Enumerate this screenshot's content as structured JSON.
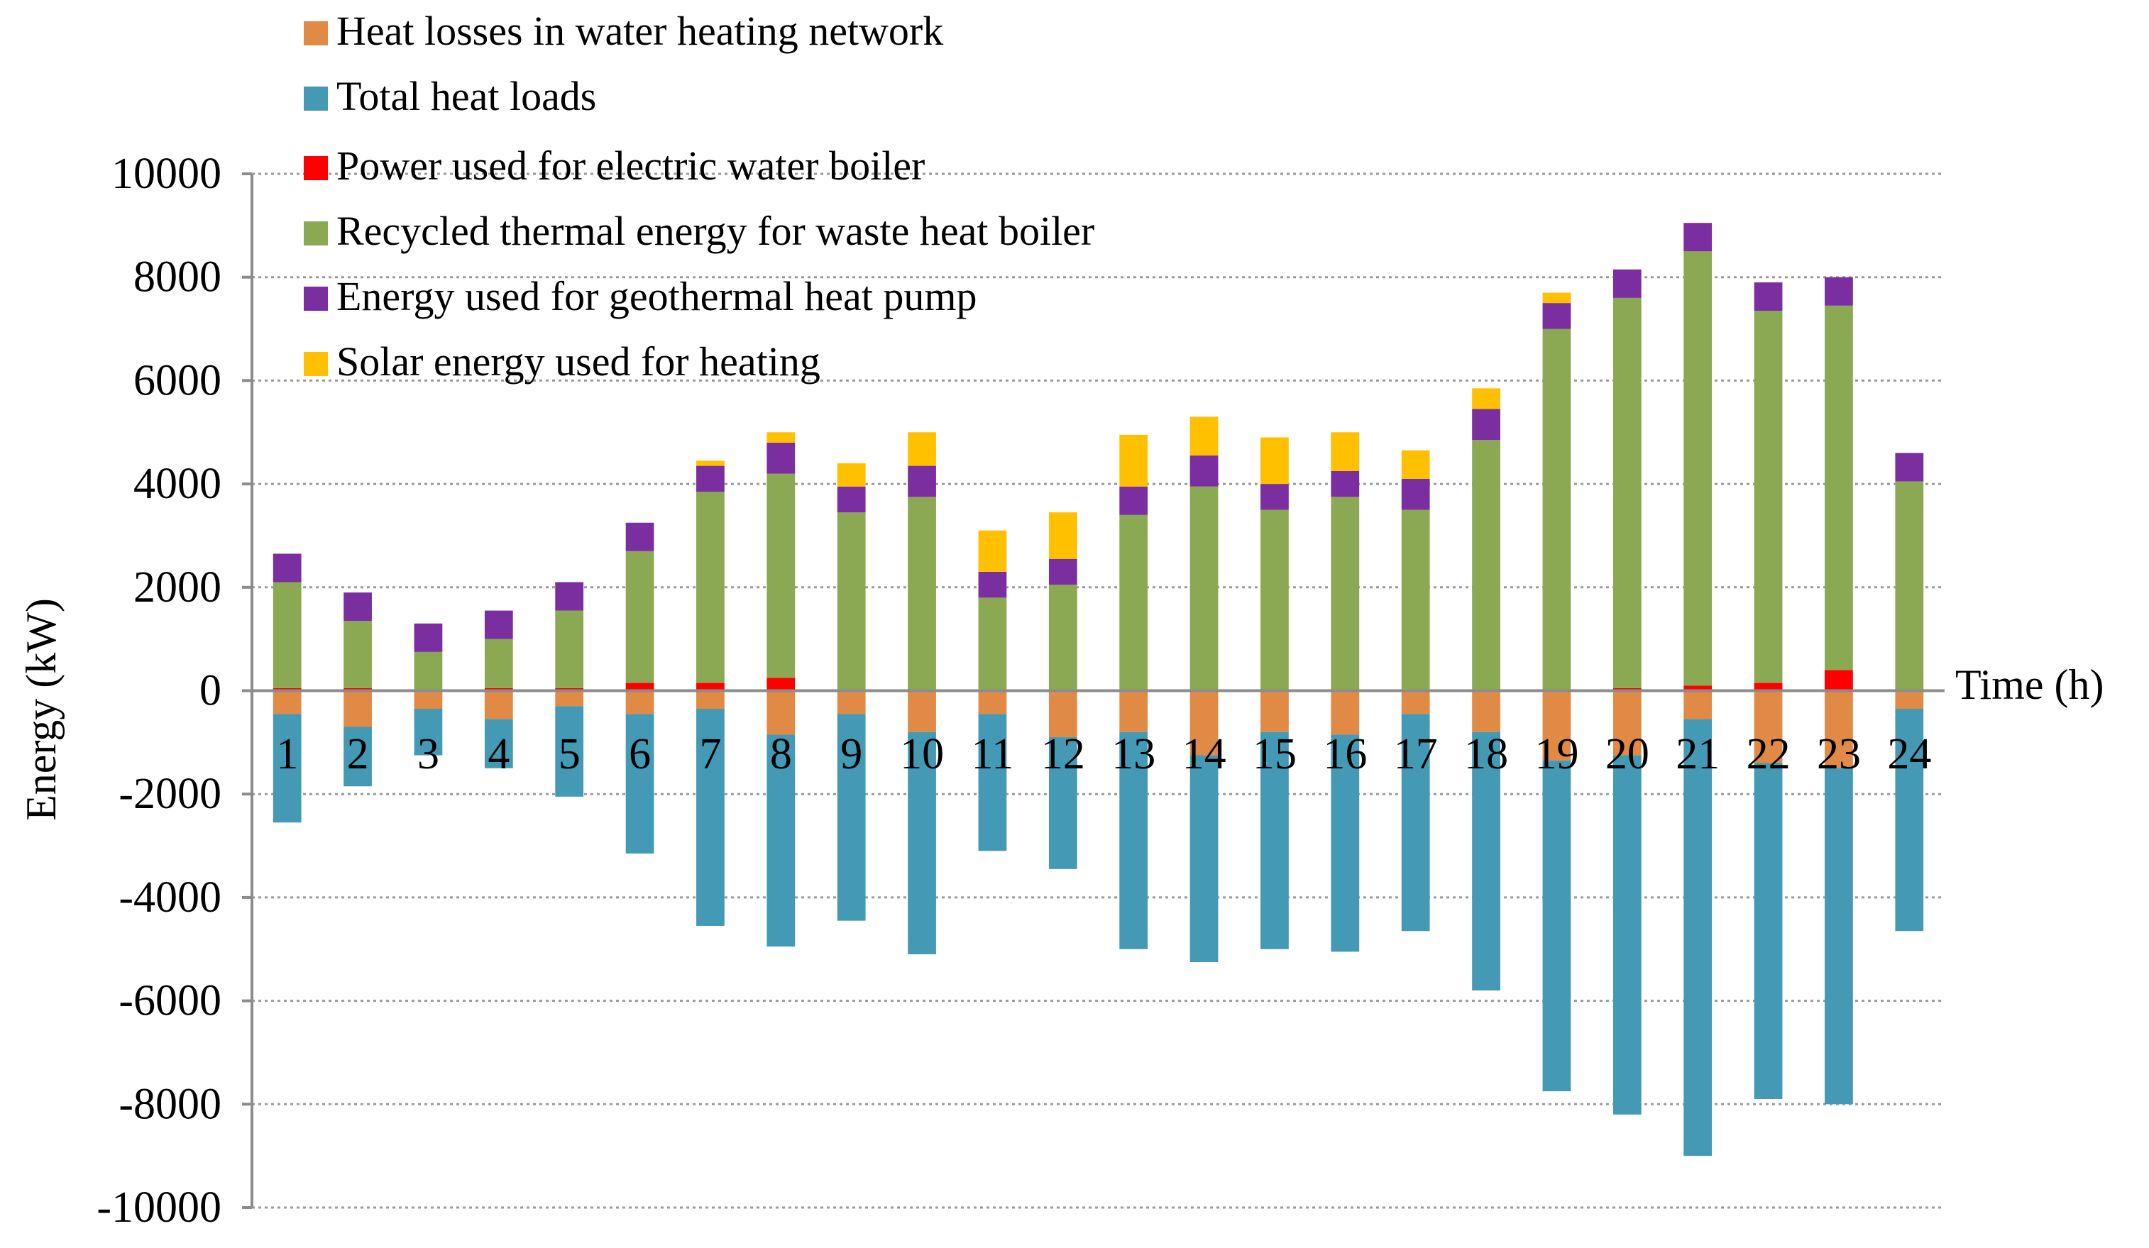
{
  "chart_data": {
    "type": "bar",
    "stacked": true,
    "title": "",
    "xlabel": "Time (h)",
    "ylabel": "Energy (kW)",
    "ylim": [
      -10000,
      10000
    ],
    "yticks": [
      10000,
      8000,
      6000,
      4000,
      2000,
      0,
      -2000,
      -4000,
      -6000,
      -8000,
      -10000
    ],
    "ytick_labels": [
      "10000",
      "8000",
      "6000",
      "4000",
      "2000",
      "0",
      "-2000",
      "-4000",
      "-6000",
      "-8000",
      "-10000"
    ],
    "grid": true,
    "legend_position": "top-left",
    "categories": [
      "1",
      "2",
      "3",
      "4",
      "5",
      "6",
      "7",
      "8",
      "9",
      "10",
      "11",
      "12",
      "13",
      "14",
      "15",
      "16",
      "17",
      "18",
      "19",
      "20",
      "21",
      "22",
      "23",
      "24"
    ],
    "series": [
      {
        "name": "Heat losses in water heating network",
        "color": "#E08A45",
        "side": "negative",
        "values": [
          -450,
          -700,
          -350,
          -550,
          -300,
          -450,
          -350,
          -850,
          -450,
          -800,
          -450,
          -900,
          -800,
          -1250,
          -800,
          -850,
          -450,
          -800,
          -1350,
          -1250,
          -550,
          -1400,
          -1500,
          -350
        ]
      },
      {
        "name": "Total heat loads",
        "color": "#4499B5",
        "side": "negative",
        "values": [
          -2100,
          -1150,
          -900,
          -950,
          -1750,
          -2700,
          -4200,
          -4100,
          -4000,
          -4300,
          -2650,
          -2550,
          -4200,
          -4000,
          -4200,
          -4200,
          -4200,
          -5000,
          -6400,
          -6950,
          -8450,
          -6500,
          -6500,
          -4300
        ]
      },
      {
        "name": "Power used for electric water boiler",
        "color": "#FF0000",
        "side": "positive",
        "values": [
          50,
          50,
          0,
          50,
          50,
          150,
          150,
          250,
          0,
          0,
          0,
          0,
          0,
          0,
          0,
          0,
          0,
          0,
          0,
          50,
          100,
          150,
          400,
          0
        ]
      },
      {
        "name": "Recycled thermal energy for waste heat boiler",
        "color": "#8BA852",
        "side": "positive",
        "values": [
          2050,
          1300,
          750,
          950,
          1500,
          2550,
          3700,
          3950,
          3450,
          3750,
          1800,
          2050,
          3400,
          3950,
          3500,
          3750,
          3500,
          4850,
          7000,
          7550,
          8400,
          7200,
          7050,
          4050
        ]
      },
      {
        "name": "Energy used for geothermal heat pump",
        "color": "#7A2EA0",
        "side": "positive",
        "values": [
          550,
          550,
          550,
          550,
          550,
          550,
          500,
          600,
          500,
          600,
          500,
          500,
          550,
          600,
          500,
          500,
          600,
          600,
          500,
          550,
          550,
          550,
          550,
          550
        ]
      },
      {
        "name": "Solar energy used for heating",
        "color": "#FFC000",
        "side": "positive",
        "values": [
          0,
          0,
          0,
          0,
          0,
          0,
          100,
          200,
          450,
          650,
          800,
          900,
          1000,
          750,
          900,
          750,
          550,
          400,
          200,
          0,
          0,
          0,
          0,
          0
        ]
      }
    ]
  }
}
